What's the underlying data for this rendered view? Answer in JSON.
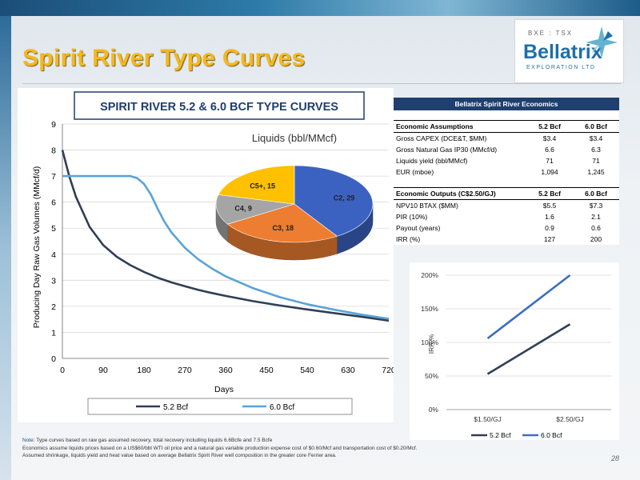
{
  "slide": {
    "title": "Spirit River Type Curves",
    "page_number": "28"
  },
  "logo": {
    "exchange": "BXE : TSX",
    "name": "Bellatrix",
    "tagline": "EXPLORATION LTD"
  },
  "colors": {
    "title": "#f5b81c",
    "series_52": "#2f3f55",
    "series_60": "#5aa3d8",
    "table_header": "#1f3f6e",
    "irr_60": "#3c6dbf"
  },
  "main_chart": {
    "title": "SPIRIT RIVER 5.2 & 6.0 BCF TYPE CURVES",
    "ylabel": "Producing Day Raw Gas Volumes (MMcf/d)",
    "xlabel": "Days",
    "x_ticks": [
      "0",
      "90",
      "180",
      "270",
      "360",
      "450",
      "540",
      "630",
      "720"
    ],
    "y_ticks": [
      "0",
      "1",
      "2",
      "3",
      "4",
      "5",
      "6",
      "7",
      "8",
      "9"
    ],
    "legend": [
      "5.2 Bcf",
      "6.0 Bcf"
    ]
  },
  "pie_chart": {
    "title": "Liquids (bbl/MMcf)"
  },
  "table": {
    "title": "Bellatrix Spirit River Economics",
    "assumptions_header": [
      "Economic Assumptions",
      "5.2 Bcf",
      "6.0 Bcf"
    ],
    "assumptions": [
      [
        "Gross CAPEX (DCE&T, $MM)",
        "$3.4",
        "$3.4"
      ],
      [
        "Gross Natural Gas IP30 (MMcf/d)",
        "6.6",
        "6.3"
      ],
      [
        "Liquids yield (bbl/MMcf)",
        "71",
        "71"
      ],
      [
        "EUR (mboe)",
        "1,094",
        "1,245"
      ]
    ],
    "outputs_header": [
      "Economic Outputs (C$2.50/GJ)",
      "5.2 Bcf",
      "6.0 Bcf"
    ],
    "outputs": [
      [
        "NPV10 BTAX ($MM)",
        "$5.5",
        "$7.3"
      ],
      [
        "PIR (10%)",
        "1.6",
        "2.1"
      ],
      [
        "Payout (years)",
        "0.9",
        "0.6"
      ],
      [
        "IRR (%)",
        "127",
        "200"
      ]
    ]
  },
  "irr_chart": {
    "ylabel": "IRR %",
    "y_ticks": [
      "0%",
      "50%",
      "100%",
      "150%",
      "200%"
    ],
    "categories": [
      "$1.50/GJ",
      "$2.50/GJ"
    ],
    "legend": [
      "5.2 Bcf",
      "6.0 Bcf"
    ]
  },
  "note": {
    "prefix": "Note:",
    "line1": "Type curves based on raw gas assumed recovery, total recovery including liquids 6.6Bcfe and 7.5 Bcfe",
    "line2": "Economics assume liquids prices based on a US$60/bbl WTI oil price and a natural gas variable production expense cost of $0.60/Mcf and transportation cost of $0.20/Mcf.",
    "line3": "Assumed shrinkage, liquids yield and heat value based on average Bellatrix Spirit River well composition in the greater core Ferrier area."
  },
  "chart_data": [
    {
      "type": "line",
      "title": "SPIRIT RIVER 5.2 & 6.0 BCF TYPE CURVES",
      "xlabel": "Days",
      "ylabel": "Producing Day Raw Gas Volumes (MMcf/d)",
      "xlim": [
        0,
        720
      ],
      "ylim": [
        0,
        9
      ],
      "grid": true,
      "legend_position": "bottom",
      "series": [
        {
          "name": "5.2 Bcf",
          "x": [
            0,
            15,
            30,
            60,
            90,
            120,
            150,
            180,
            210,
            240,
            270,
            300,
            330,
            360,
            420,
            480,
            540,
            600,
            660,
            720
          ],
          "y": [
            8.0,
            7.0,
            6.2,
            5.05,
            4.35,
            3.9,
            3.58,
            3.32,
            3.1,
            2.92,
            2.77,
            2.63,
            2.51,
            2.4,
            2.2,
            2.03,
            1.88,
            1.74,
            1.6,
            1.45
          ]
        },
        {
          "name": "6.0 Bcf",
          "x": [
            0,
            60,
            120,
            150,
            165,
            180,
            195,
            210,
            225,
            240,
            270,
            300,
            330,
            360,
            420,
            480,
            540,
            600,
            660,
            720
          ],
          "y": [
            7.0,
            7.0,
            7.0,
            7.0,
            6.92,
            6.7,
            6.3,
            5.75,
            5.25,
            4.85,
            4.25,
            3.8,
            3.45,
            3.15,
            2.7,
            2.35,
            2.08,
            1.87,
            1.68,
            1.52
          ]
        }
      ]
    },
    {
      "type": "pie",
      "title": "Liquids (bbl/MMcf)",
      "labels": [
        "C2",
        "C3",
        "C4",
        "C5+"
      ],
      "values": [
        29,
        18,
        9,
        15
      ],
      "colors": [
        "#3b62c0",
        "#ed7d31",
        "#a5a5a5",
        "#ffc000"
      ]
    },
    {
      "type": "line",
      "xlabel": "",
      "ylabel": "IRR %",
      "categories": [
        "$1.50/GJ",
        "$2.50/GJ"
      ],
      "ylim": [
        0,
        200
      ],
      "grid": true,
      "legend_position": "bottom",
      "series": [
        {
          "name": "5.2 Bcf",
          "values": [
            53,
            127
          ]
        },
        {
          "name": "6.0 Bcf",
          "values": [
            106,
            200
          ]
        }
      ]
    }
  ]
}
